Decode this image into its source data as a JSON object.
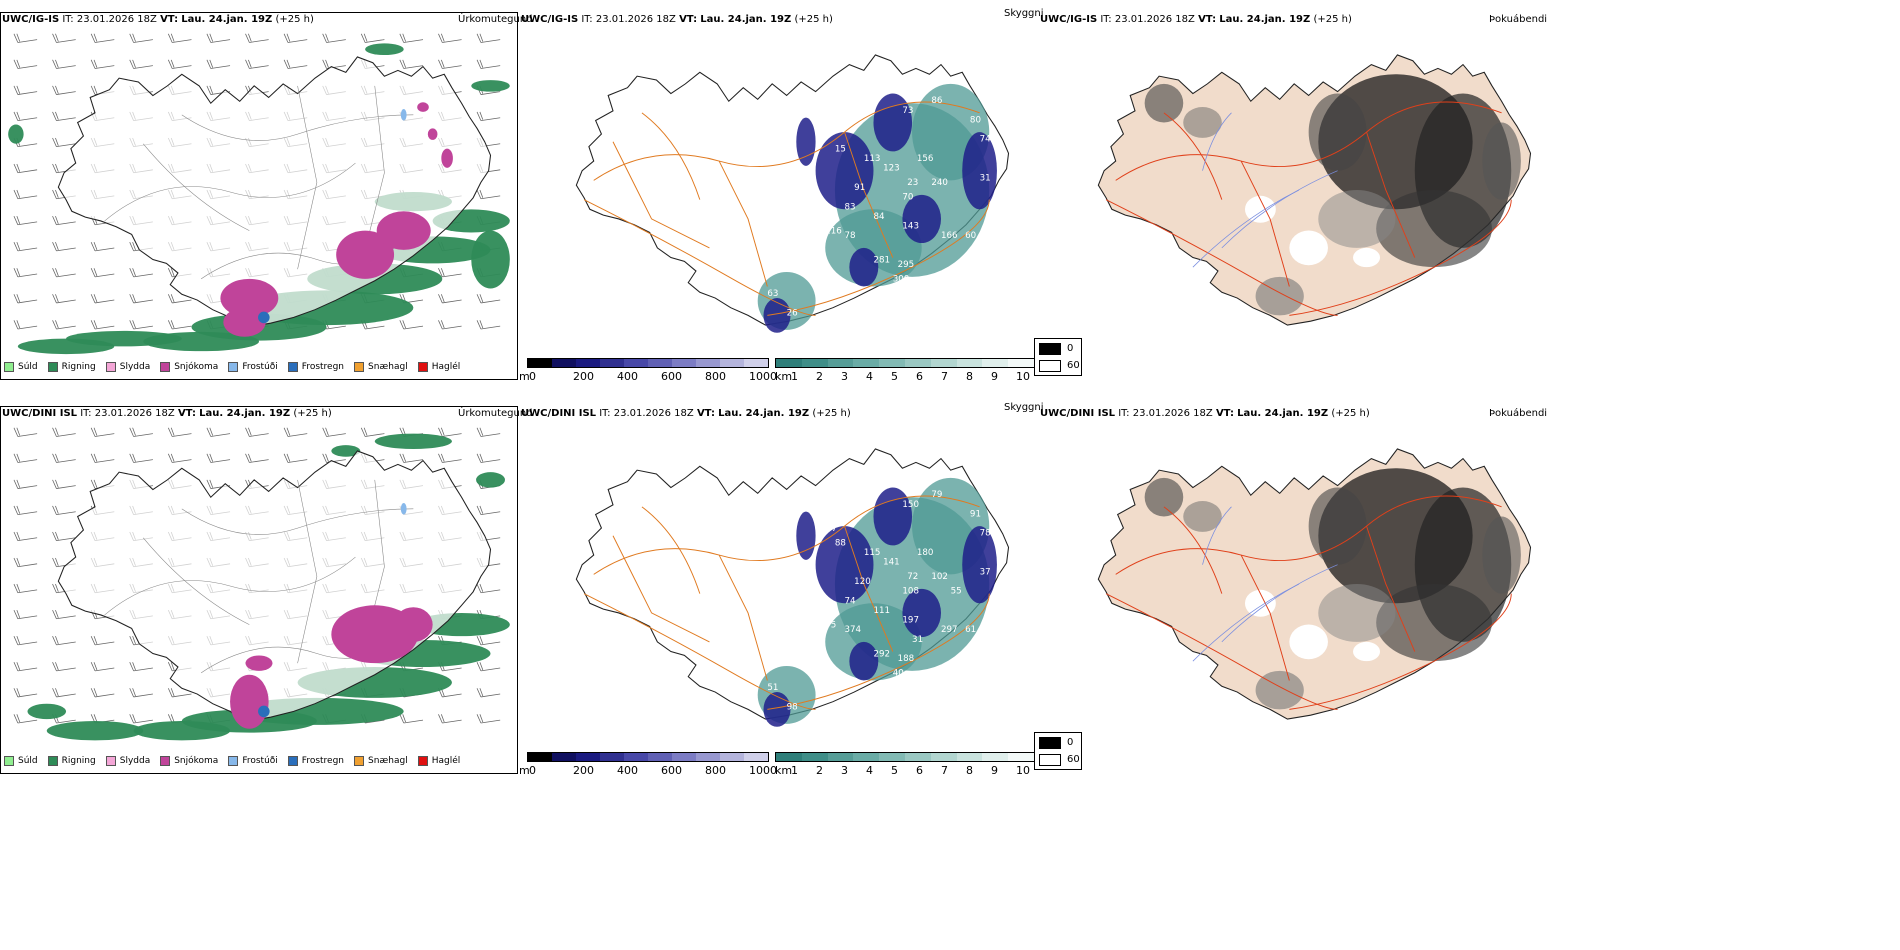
{
  "rows": [
    {
      "model": "UWC/IG-IS",
      "it_label": "IT:",
      "it_value": "23.01.2026 18Z",
      "vt_label": "VT:",
      "vt_value": "Lau. 24.jan. 19Z",
      "lead": "(+25 h)"
    },
    {
      "model": "UWC/DINI ISL",
      "it_label": "IT:",
      "it_value": "23.01.2026 18Z",
      "vt_label": "VT:",
      "vt_value": "Lau. 24.jan. 19Z",
      "lead": "(+25 h)"
    }
  ],
  "panel_titles": {
    "precip": "Úrkomutegund",
    "visibility": "Skyggni",
    "fog": "Þokuábendi"
  },
  "precip_legend": [
    {
      "label": "Súld",
      "color": "#90ee90"
    },
    {
      "label": "Rigning",
      "color": "#2e8b57"
    },
    {
      "label": "Slydda",
      "color": "#f4a6d7"
    },
    {
      "label": "Snjókoma",
      "color": "#c0449a"
    },
    {
      "label": "Frostúði",
      "color": "#87b8ea"
    },
    {
      "label": "Frostregn",
      "color": "#2a6ebb"
    },
    {
      "label": "Snæhagl",
      "color": "#f0a030"
    },
    {
      "label": "Haglél",
      "color": "#e01010"
    }
  ],
  "visibility_bar_m": {
    "unit": "m",
    "ticks": [
      "0",
      "200",
      "400",
      "600",
      "800",
      "1000"
    ],
    "colors": [
      "#000000",
      "#101060",
      "#1a1a80",
      "#303090",
      "#4848a8",
      "#6060b4",
      "#7c7cc4",
      "#9898d0",
      "#b4b4dc",
      "#d0d0ea"
    ]
  },
  "visibility_bar_km": {
    "unit": "km",
    "ticks": [
      "1",
      "2",
      "3",
      "4",
      "5",
      "6",
      "7",
      "8",
      "9",
      "10"
    ],
    "colors": [
      "#2f7f7a",
      "#3f8e88",
      "#569d97",
      "#6aaca6",
      "#82bab4",
      "#9ac8c2",
      "#b2d6d0",
      "#c9e3de",
      "#e0efec",
      "#f3f9f8"
    ]
  },
  "fog_legend": {
    "dark": "0",
    "light": "60"
  },
  "vis_labels_top": [
    "73",
    "86",
    "80",
    "74",
    "13",
    "15",
    "113",
    "123",
    "156",
    "23",
    "240",
    "70",
    "91",
    "83",
    "82",
    "84",
    "116",
    "78",
    "143",
    "166",
    "60",
    "281",
    "295",
    "300",
    "225",
    "63",
    "26",
    "31"
  ],
  "vis_labels_bottom": [
    "150",
    "79",
    "91",
    "78",
    "107",
    "88",
    "115",
    "141",
    "180",
    "72",
    "102",
    "108",
    "120",
    "74",
    "105",
    "111",
    "75",
    "374",
    "197",
    "297",
    "61",
    "292",
    "188",
    "40",
    "122",
    "51",
    "98",
    "37",
    "55",
    "31"
  ]
}
